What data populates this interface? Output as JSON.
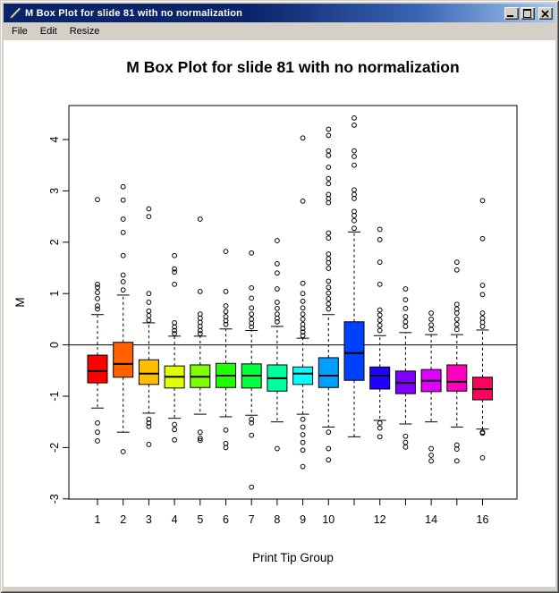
{
  "window": {
    "title": "M Box Plot for slide 81 with no normalization",
    "icon": "pen-icon",
    "controls": [
      "minimize-icon",
      "maximize-icon",
      "close-icon"
    ]
  },
  "menu": {
    "items": [
      "File",
      "Edit",
      "Resize"
    ]
  },
  "colors": {
    "titlebar_gradient_start": "#0A246A",
    "titlebar_gradient_end": "#A6CAF0",
    "window_chrome": "#D4D0C8",
    "canvas_background": "#FFFFFF",
    "plot_foreground": "#000000"
  },
  "chart_data": {
    "type": "boxplot",
    "title": "M Box Plot for slide 81 with no normalization",
    "xlabel": "Print Tip Group",
    "ylabel": "M",
    "ylim": [
      -3.0,
      4.66
    ],
    "yticks": [
      -3,
      -2,
      -1,
      0,
      1,
      2,
      3,
      4
    ],
    "categories": [
      1,
      2,
      3,
      4,
      5,
      6,
      7,
      8,
      9,
      10,
      11,
      12,
      13,
      14,
      15,
      16
    ],
    "xtick_labels": [
      "1",
      "2",
      "3",
      "4",
      "5",
      "6",
      "7",
      "8",
      "9",
      "10",
      "",
      "12",
      "",
      "14",
      "",
      "16"
    ],
    "reference_line_y": 0,
    "grid": false,
    "legend": false,
    "groups": [
      {
        "group": 1,
        "color": "#FF0000",
        "q1": -0.74,
        "median": -0.51,
        "q3": -0.2,
        "whisker_low": -1.23,
        "whisker_high": 0.59,
        "outliers_high": [
          2.83,
          1.18,
          1.12,
          1.02,
          0.9,
          0.76,
          0.7
        ],
        "outliers_low": [
          -1.52,
          -1.7,
          -1.87
        ]
      },
      {
        "group": 2,
        "color": "#FF6000",
        "q1": -0.63,
        "median": -0.37,
        "q3": 0.05,
        "whisker_low": -1.7,
        "whisker_high": 0.97,
        "outliers_high": [
          3.08,
          2.82,
          2.45,
          2.19,
          1.74,
          1.36,
          1.23,
          1.07
        ],
        "outliers_low": [
          -2.08
        ]
      },
      {
        "group": 3,
        "color": "#FFBF00",
        "q1": -0.77,
        "median": -0.56,
        "q3": -0.29,
        "whisker_low": -1.33,
        "whisker_high": 0.43,
        "outliers_high": [
          2.65,
          2.5,
          1.0,
          0.83,
          0.66,
          0.57,
          0.48
        ],
        "outliers_low": [
          -1.45,
          -1.52,
          -1.59,
          -1.94
        ]
      },
      {
        "group": 4,
        "color": "#DFFF00",
        "q1": -0.84,
        "median": -0.62,
        "q3": -0.41,
        "whisker_low": -1.43,
        "whisker_high": 0.17,
        "outliers_high": [
          1.74,
          1.48,
          1.42,
          1.18,
          0.43,
          0.35,
          0.28,
          0.22
        ],
        "outliers_low": [
          -1.55,
          -1.65,
          -1.85
        ]
      },
      {
        "group": 5,
        "color": "#80FF00",
        "q1": -0.83,
        "median": -0.62,
        "q3": -0.39,
        "whisker_low": -1.35,
        "whisker_high": 0.17,
        "outliers_high": [
          2.45,
          1.04,
          0.6,
          0.52,
          0.44,
          0.36,
          0.28,
          0.22
        ],
        "outliers_low": [
          -1.7,
          -1.82,
          -1.86
        ]
      },
      {
        "group": 6,
        "color": "#20FF00",
        "q1": -0.83,
        "median": -0.6,
        "q3": -0.36,
        "whisker_low": -1.4,
        "whisker_high": 0.31,
        "outliers_high": [
          1.82,
          1.04,
          0.76,
          0.65,
          0.55,
          0.47,
          0.4
        ],
        "outliers_low": [
          -1.66,
          -1.92,
          -2.0
        ]
      },
      {
        "group": 7,
        "color": "#00FF40",
        "q1": -0.84,
        "median": -0.6,
        "q3": -0.37,
        "whisker_low": -1.37,
        "whisker_high": 0.28,
        "outliers_high": [
          1.79,
          1.11,
          0.91,
          0.72,
          0.6,
          0.5,
          0.42,
          0.35
        ],
        "outliers_low": [
          -1.45,
          -1.52,
          -1.76,
          -2.77
        ]
      },
      {
        "group": 8,
        "color": "#00FF9F",
        "q1": -0.9,
        "median": -0.65,
        "q3": -0.39,
        "whisker_low": -1.5,
        "whisker_high": 0.36,
        "outliers_high": [
          2.03,
          1.58,
          1.4,
          1.09,
          0.83,
          0.71,
          0.6,
          0.52,
          0.45
        ],
        "outliers_low": [
          -2.02
        ]
      },
      {
        "group": 9,
        "color": "#00FFFF",
        "q1": -0.77,
        "median": -0.56,
        "q3": -0.43,
        "whisker_low": -1.35,
        "whisker_high": 0.13,
        "outliers_high": [
          4.03,
          2.8,
          1.2,
          1.0,
          0.85,
          0.72,
          0.6,
          0.5,
          0.4,
          0.32,
          0.25,
          0.18
        ],
        "outliers_low": [
          -1.45,
          -1.6,
          -1.75,
          -1.9,
          -2.05,
          -2.37
        ]
      },
      {
        "group": 10,
        "color": "#009FFF",
        "q1": -0.83,
        "median": -0.6,
        "q3": -0.25,
        "whisker_low": -1.6,
        "whisker_high": 0.59,
        "outliers_high": [
          4.2,
          4.08,
          3.78,
          3.69,
          3.46,
          3.24,
          3.14,
          2.93,
          2.85,
          2.77,
          2.18,
          2.08,
          1.77,
          1.68,
          1.6,
          1.49,
          1.24,
          1.12,
          1.01,
          0.9,
          0.8,
          0.7
        ],
        "outliers_low": [
          -1.7,
          -2.02,
          -2.24
        ]
      },
      {
        "group": 11,
        "color": "#0040FF",
        "q1": -0.69,
        "median": -0.16,
        "q3": 0.45,
        "whisker_low": -1.79,
        "whisker_high": 2.2,
        "outliers_high": [
          4.42,
          4.28,
          3.78,
          3.67,
          3.5,
          3.02,
          2.93,
          2.85,
          2.6,
          2.52,
          2.42,
          2.27
        ],
        "outliers_low": []
      },
      {
        "group": 12,
        "color": "#2000FF",
        "q1": -0.86,
        "median": -0.6,
        "q3": -0.43,
        "whisker_low": -1.47,
        "whisker_high": 0.18,
        "outliers_high": [
          2.25,
          2.05,
          1.61,
          1.18,
          0.68,
          0.58,
          0.48,
          0.38,
          0.28
        ],
        "outliers_low": [
          -1.52,
          -1.62,
          -1.79
        ]
      },
      {
        "group": 13,
        "color": "#8000FF",
        "q1": -0.95,
        "median": -0.74,
        "q3": -0.51,
        "whisker_low": -1.54,
        "whisker_high": 0.24,
        "outliers_high": [
          1.09,
          0.88,
          0.71,
          0.55,
          0.45,
          0.36
        ],
        "outliers_low": [
          -1.78,
          -1.9,
          -1.99
        ]
      },
      {
        "group": 14,
        "color": "#DF00FF",
        "q1": -0.91,
        "median": -0.7,
        "q3": -0.48,
        "whisker_low": -1.5,
        "whisker_high": 0.2,
        "outliers_high": [
          0.62,
          0.5,
          0.39,
          0.3
        ],
        "outliers_low": [
          -2.02,
          -2.15,
          -2.26
        ]
      },
      {
        "group": 15,
        "color": "#FF00BF",
        "q1": -0.9,
        "median": -0.72,
        "q3": -0.39,
        "whisker_low": -1.6,
        "whisker_high": 0.2,
        "outliers_high": [
          1.61,
          1.46,
          0.79,
          0.7,
          0.62,
          0.5,
          0.4,
          0.3
        ],
        "outliers_low": [
          -1.95,
          -2.03,
          -2.26
        ]
      },
      {
        "group": 16,
        "color": "#FF0060",
        "q1": -1.07,
        "median": -0.86,
        "q3": -0.63,
        "whisker_low": -1.64,
        "whisker_high": 0.29,
        "outliers_high": [
          2.81,
          2.07,
          1.16,
          0.98,
          0.62,
          0.52,
          0.44,
          0.36
        ],
        "outliers_low": [
          -1.7,
          -1.72,
          -2.2
        ]
      }
    ]
  }
}
